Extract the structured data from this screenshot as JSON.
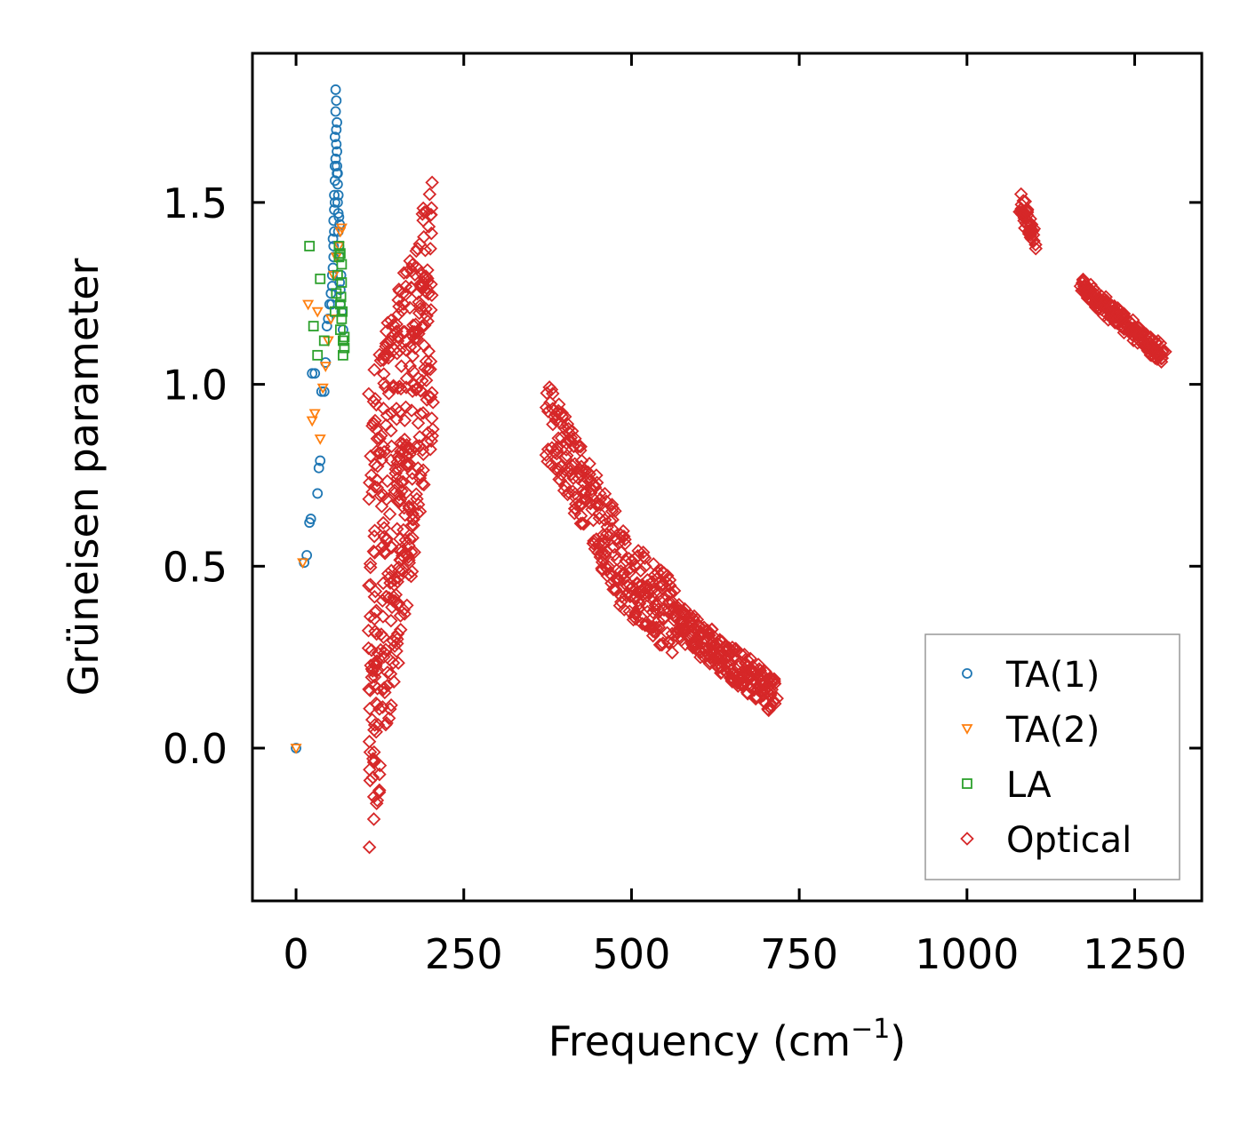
{
  "chart_data": {
    "type": "scatter",
    "title": "",
    "xlabel": "Frequency (cm",
    "xlabel_sup": "−1",
    "xlabel_close": ")",
    "ylabel": "Grüneisen parameter",
    "xlim": [
      -65,
      1350
    ],
    "ylim": [
      -0.42,
      1.91
    ],
    "xticks": [
      0,
      250,
      500,
      750,
      1000,
      1250
    ],
    "xtick_labels": [
      "0",
      "250",
      "500",
      "750",
      "1000",
      "1250"
    ],
    "yticks": [
      0.0,
      0.5,
      1.0,
      1.5
    ],
    "ytick_labels": [
      "0.0",
      "0.5",
      "1.0",
      "1.5"
    ],
    "grid": false,
    "legend_position": "bottom-right",
    "series": [
      {
        "name": "TA(1)",
        "marker": "circle",
        "color": "#1f77b4",
        "points": [
          [
            0,
            0.0
          ],
          [
            12,
            0.51
          ],
          [
            16,
            0.53
          ],
          [
            20,
            0.62
          ],
          [
            22,
            0.63
          ],
          [
            24,
            1.03
          ],
          [
            28,
            1.03
          ],
          [
            32,
            0.7
          ],
          [
            34,
            0.77
          ],
          [
            36,
            0.79
          ],
          [
            38,
            0.98
          ],
          [
            42,
            0.98
          ],
          [
            44,
            1.06
          ],
          [
            46,
            1.16
          ],
          [
            48,
            1.18
          ],
          [
            50,
            1.22
          ],
          [
            52,
            1.25
          ],
          [
            54,
            1.3
          ],
          [
            55,
            1.4
          ],
          [
            56,
            1.45
          ],
          [
            57,
            1.52
          ],
          [
            58,
            1.6
          ],
          [
            58,
            1.68
          ],
          [
            59,
            1.75
          ],
          [
            59,
            1.81
          ],
          [
            60,
            1.78
          ],
          [
            60,
            1.7
          ],
          [
            61,
            1.64
          ],
          [
            61,
            1.58
          ],
          [
            62,
            1.55
          ],
          [
            62,
            1.5
          ],
          [
            63,
            1.47
          ],
          [
            63,
            1.42
          ],
          [
            64,
            1.38
          ],
          [
            65,
            1.35
          ],
          [
            65,
            1.28
          ],
          [
            66,
            1.26
          ],
          [
            66,
            1.22
          ],
          [
            67,
            1.3
          ],
          [
            68,
            1.2
          ],
          [
            70,
            1.15
          ],
          [
            58,
            1.56
          ],
          [
            57,
            1.48
          ],
          [
            56,
            1.38
          ],
          [
            55,
            1.32
          ],
          [
            54,
            1.27
          ],
          [
            53,
            1.22
          ],
          [
            59,
            1.62
          ],
          [
            60,
            1.66
          ],
          [
            61,
            1.72
          ],
          [
            61,
            1.6
          ],
          [
            62,
            1.58
          ],
          [
            63,
            1.52
          ],
          [
            64,
            1.46
          ],
          [
            65,
            1.44
          ],
          [
            56,
            1.35
          ],
          [
            57,
            1.42
          ],
          [
            58,
            1.5
          ]
        ]
      },
      {
        "name": "TA(2)",
        "marker": "triangle-down",
        "color": "#ff7f0e",
        "points": [
          [
            0,
            0.0
          ],
          [
            10,
            0.51
          ],
          [
            18,
            1.22
          ],
          [
            24,
            0.9
          ],
          [
            28,
            0.92
          ],
          [
            32,
            1.2
          ],
          [
            36,
            0.85
          ],
          [
            40,
            0.99
          ],
          [
            44,
            1.05
          ],
          [
            48,
            1.12
          ],
          [
            52,
            1.18
          ],
          [
            56,
            1.3
          ],
          [
            60,
            1.35
          ],
          [
            64,
            1.38
          ],
          [
            66,
            1.42
          ],
          [
            68,
            1.43
          ]
        ]
      },
      {
        "name": "LA",
        "marker": "square",
        "color": "#2ca02c",
        "points": [
          [
            20,
            1.38
          ],
          [
            26,
            1.16
          ],
          [
            32,
            1.08
          ],
          [
            36,
            1.29
          ],
          [
            42,
            1.12
          ],
          [
            58,
            1.2
          ],
          [
            60,
            1.25
          ],
          [
            62,
            1.3
          ],
          [
            64,
            1.35
          ],
          [
            64,
            1.38
          ],
          [
            66,
            1.15
          ],
          [
            66,
            1.22
          ],
          [
            68,
            1.18
          ],
          [
            68,
            1.28
          ],
          [
            70,
            1.12
          ],
          [
            70,
            1.08
          ],
          [
            72,
            1.1
          ],
          [
            72,
            1.13
          ],
          [
            68,
            1.33
          ],
          [
            66,
            1.36
          ],
          [
            67,
            1.24
          ],
          [
            69,
            1.2
          ]
        ]
      },
      {
        "name": "Optical",
        "marker": "diamond",
        "color": "#d62728",
        "clusters": [
          {
            "kind": "band",
            "x_start": 108,
            "x_end": 205,
            "y_low_start": -0.32,
            "y_high_start": 1.0,
            "y_low_end": 0.88,
            "y_high_end": 1.58
          },
          {
            "kind": "curve",
            "x_start": 375,
            "x_end": 715,
            "y_start": 0.9,
            "y_mid_x": 500,
            "y_mid": 0.45,
            "y_end": 0.14,
            "spread": 0.05
          },
          {
            "kind": "curve",
            "x_start": 1080,
            "x_end": 1100,
            "y_start": 1.5,
            "y_end": 1.4,
            "spread": 0.03
          },
          {
            "kind": "curve",
            "x_start": 1170,
            "x_end": 1292,
            "y_start": 1.27,
            "y_end": 1.08,
            "spread": 0.025
          }
        ]
      }
    ]
  }
}
